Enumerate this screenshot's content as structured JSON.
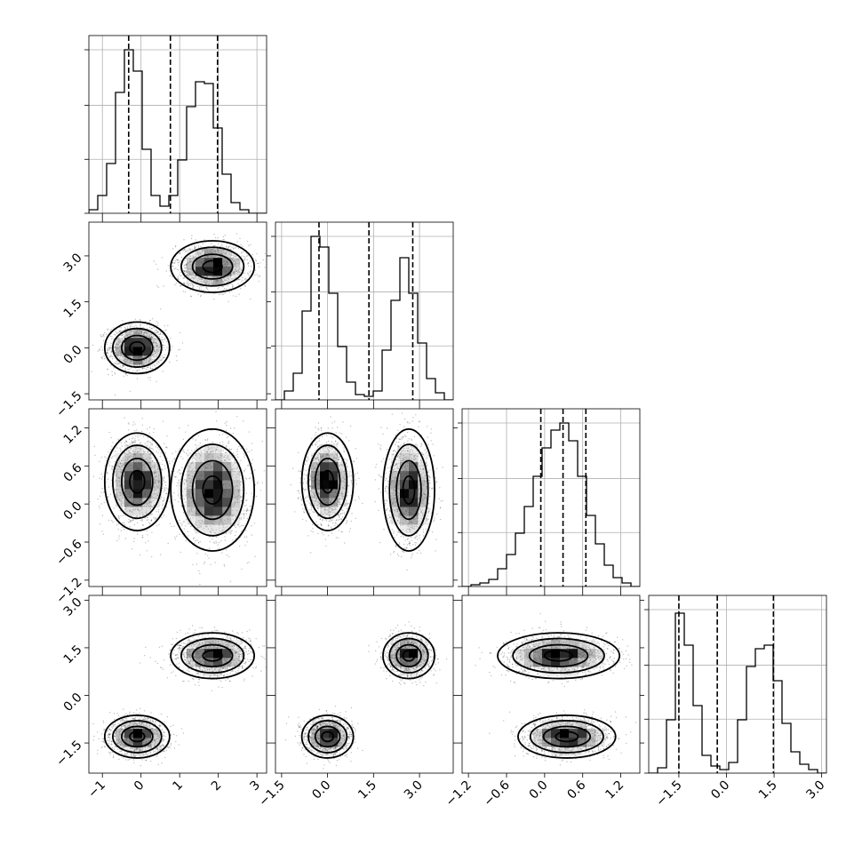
{
  "chart_data": {
    "type": "corner",
    "grid": true,
    "parameters": 4,
    "components": [
      {
        "mean": [
          -0.1,
          0.0,
          0.35,
          -1.3
        ],
        "sd": [
          0.35,
          0.35,
          0.32,
          0.28
        ]
      },
      {
        "mean": [
          1.85,
          2.65,
          0.22,
          1.25
        ],
        "sd": [
          0.45,
          0.35,
          0.4,
          0.3
        ]
      }
    ],
    "axes": [
      {
        "range": [
          -1.35,
          3.25
        ],
        "ticks": [
          -1,
          0,
          1,
          2,
          3
        ],
        "tick_labels": [
          "−1",
          "0",
          "1",
          "2",
          "3"
        ]
      },
      {
        "range": [
          -1.7,
          4.1
        ],
        "ticks": [
          -1.5,
          0.0,
          1.5,
          3.0
        ],
        "tick_labels": [
          "−1.5",
          "0.0",
          "1.5",
          "3.0"
        ]
      },
      {
        "range": [
          -1.3,
          1.5
        ],
        "ticks": [
          -1.2,
          -0.6,
          0.0,
          0.6,
          1.2
        ],
        "tick_labels": [
          "−1.2",
          "−0.6",
          "0.0",
          "0.6",
          "1.2"
        ]
      },
      {
        "range": [
          -2.45,
          3.15
        ],
        "ticks": [
          -1.5,
          0.0,
          1.5,
          3.0
        ],
        "tick_labels": [
          "−1.5",
          "0.0",
          "1.5",
          "3.0"
        ]
      }
    ],
    "quantiles": [
      [
        -0.32,
        0.76,
        1.98
      ],
      [
        -0.28,
        1.35,
        2.78
      ],
      [
        -0.06,
        0.29,
        0.65
      ],
      [
        -1.5,
        -0.29,
        1.48
      ]
    ],
    "histograms": [
      {
        "edges": [
          -1.35,
          -1.12,
          -0.89,
          -0.66,
          -0.43,
          -0.2,
          0.03,
          0.26,
          0.49,
          0.72,
          0.95,
          1.18,
          1.41,
          1.64,
          1.87,
          2.1,
          2.33,
          2.56,
          2.79,
          3.02,
          3.25
        ],
        "heights": [
          0.02,
          0.1,
          0.28,
          0.68,
          0.92,
          0.8,
          0.36,
          0.1,
          0.04,
          0.1,
          0.3,
          0.6,
          0.74,
          0.73,
          0.48,
          0.22,
          0.06,
          0.02,
          0.0,
          0.0
        ]
      },
      {
        "edges": [
          -1.7,
          -1.41,
          -1.12,
          -0.83,
          -0.54,
          -0.25,
          0.04,
          0.33,
          0.62,
          0.91,
          1.2,
          1.49,
          1.78,
          2.07,
          2.36,
          2.65,
          2.94,
          3.23,
          3.52,
          3.81,
          4.1
        ],
        "heights": [
          0.0,
          0.05,
          0.15,
          0.5,
          0.92,
          0.86,
          0.6,
          0.3,
          0.1,
          0.03,
          0.02,
          0.05,
          0.28,
          0.56,
          0.8,
          0.6,
          0.32,
          0.12,
          0.04,
          0.0
        ]
      },
      {
        "edges": [
          -1.3,
          -1.16,
          -1.02,
          -0.88,
          -0.74,
          -0.6,
          -0.46,
          -0.32,
          -0.18,
          -0.04,
          0.1,
          0.24,
          0.38,
          0.52,
          0.66,
          0.8,
          0.94,
          1.08,
          1.22,
          1.36,
          1.5
        ],
        "heights": [
          0.0,
          0.01,
          0.02,
          0.04,
          0.1,
          0.18,
          0.3,
          0.45,
          0.62,
          0.78,
          0.88,
          0.92,
          0.82,
          0.62,
          0.4,
          0.24,
          0.12,
          0.05,
          0.02,
          0.0
        ]
      },
      {
        "edges": [
          -2.45,
          -2.17,
          -1.89,
          -1.61,
          -1.33,
          -1.05,
          -0.77,
          -0.49,
          -0.21,
          0.07,
          0.35,
          0.63,
          0.91,
          1.19,
          1.47,
          1.75,
          2.03,
          2.31,
          2.59,
          2.87,
          3.15
        ],
        "heights": [
          0.0,
          0.03,
          0.3,
          0.9,
          0.72,
          0.38,
          0.1,
          0.04,
          0.02,
          0.06,
          0.3,
          0.6,
          0.7,
          0.72,
          0.52,
          0.28,
          0.12,
          0.05,
          0.02,
          0.0
        ]
      }
    ]
  }
}
